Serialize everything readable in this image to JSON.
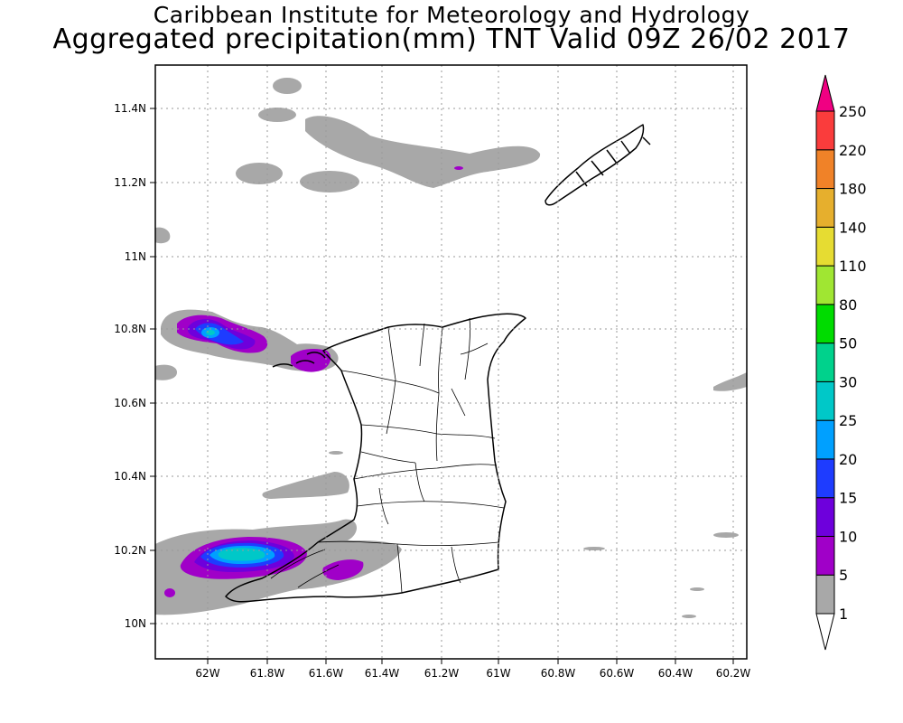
{
  "title": {
    "line1": "Caribbean Institute for Meteorology and Hydrology",
    "line2": "Aggregated precipitation(mm) TNT Valid 09Z 26/02 2017"
  },
  "axes": {
    "lat_labels": [
      "11.4N",
      "11.2N",
      "11N",
      "10.8N",
      "10.6N",
      "10.4N",
      "10.2N",
      "10N"
    ],
    "lon_labels": [
      "62W",
      "61.8W",
      "61.6W",
      "61.4W",
      "61.2W",
      "61W",
      "60.8W",
      "60.6W",
      "60.4W",
      "60.2W"
    ]
  },
  "colorbar": {
    "levels": [
      "1",
      "5",
      "10",
      "15",
      "20",
      "25",
      "30",
      "50",
      "80",
      "110",
      "140",
      "180",
      "220",
      "250"
    ],
    "colors": [
      "#ffffff",
      "#a8a8a8",
      "#a000c8",
      "#6e00dc",
      "#1e3cff",
      "#00a0ff",
      "#00c8c8",
      "#00d28c",
      "#00dc00",
      "#a0e632",
      "#e6dc32",
      "#e6af2d",
      "#f08228",
      "#fa3c3c",
      "#f00082"
    ]
  },
  "colors": {
    "grey_rain": "#a8a8a8",
    "purple_rain": "#a000c8",
    "violet_rain": "#6e00dc",
    "blue_rain": "#1e3cff",
    "lightblue_rain": "#00a0ff",
    "cyan_rain": "#00c8c8"
  }
}
